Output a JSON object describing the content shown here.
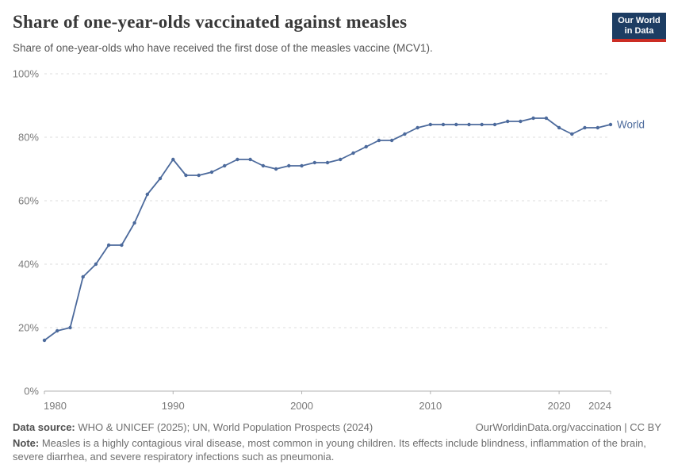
{
  "header": {
    "title": "Share of one-year-olds vaccinated against measles",
    "subtitle": "Share of one-year-olds who have received the first dose of the measles vaccine (MCV1).",
    "logo_line1": "Our World",
    "logo_line2": "in Data"
  },
  "chart_data": {
    "type": "line",
    "title": "Share of one-year-olds vaccinated against measles",
    "xlabel": "",
    "ylabel": "",
    "xlim": [
      1980,
      2024
    ],
    "ylim": [
      0,
      100
    ],
    "x_ticks": [
      1980,
      1990,
      2000,
      2010,
      2020,
      2024
    ],
    "y_ticks": [
      0,
      20,
      40,
      60,
      80,
      100
    ],
    "y_tick_suffix": "%",
    "grid": "horizontal-dashed",
    "legend_position": "end-of-line-label",
    "series": [
      {
        "name": "World",
        "color": "#4C6A9C",
        "x": [
          1980,
          1981,
          1982,
          1983,
          1984,
          1985,
          1986,
          1987,
          1988,
          1989,
          1990,
          1991,
          1992,
          1993,
          1994,
          1995,
          1996,
          1997,
          1998,
          1999,
          2000,
          2001,
          2002,
          2003,
          2004,
          2005,
          2006,
          2007,
          2008,
          2009,
          2010,
          2011,
          2012,
          2013,
          2014,
          2015,
          2016,
          2017,
          2018,
          2019,
          2020,
          2021,
          2022,
          2023,
          2024
        ],
        "values": [
          16,
          19,
          20,
          36,
          40,
          46,
          46,
          53,
          62,
          67,
          73,
          68,
          68,
          69,
          71,
          73,
          73,
          71,
          70,
          71,
          71,
          72,
          72,
          73,
          75,
          77,
          79,
          79,
          81,
          83,
          84,
          84,
          84,
          84,
          84,
          84,
          85,
          85,
          86,
          86,
          83,
          81,
          83,
          83,
          84
        ]
      }
    ]
  },
  "colors": {
    "line": "#4C6A9C",
    "grid": "#dcdcdc",
    "axis": "#b3b3b3",
    "tick_text": "#7a7a7a",
    "logo_bg": "#1d3d63",
    "logo_bar": "#cb2d24"
  },
  "footer": {
    "data_source_label": "Data source:",
    "data_source_text": " WHO & UNICEF (2025); UN, World Population Prospects (2024)",
    "credit": "OurWorldinData.org/vaccination | CC BY",
    "note_label": "Note:",
    "note_text": " Measles is a highly contagious viral disease, most common in young children. Its effects include blindness, inflammation of the brain, severe diarrhea, and severe respiratory infections such as pneumonia."
  }
}
